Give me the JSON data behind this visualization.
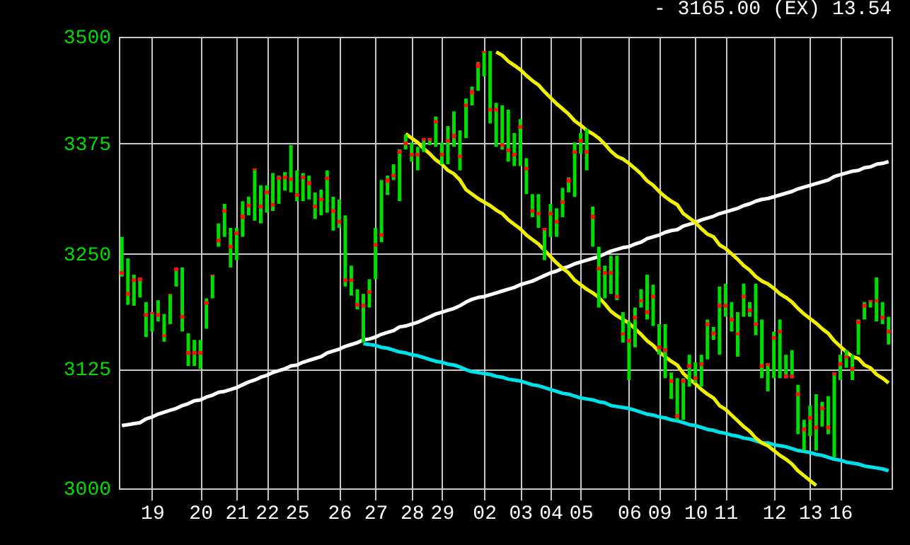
{
  "chart_data": {
    "type": "candlestick",
    "title": "-   3165.00   (EX)   13.54",
    "color": "#00dd00",
    "colors": [
      "#ff1010",
      "#ff1010",
      "#ff1010",
      "#ff1010",
      "#ff1010",
      "#ff1010",
      "#ff1010",
      "#ff1010",
      "#ff1010",
      "#ff1010",
      "#ff1010",
      "#ff1010",
      "#ff1010",
      "#ff1010",
      "#ff1010",
      "#ff1010",
      "#ff1010",
      "#ff1010",
      "#ff1010",
      "#ff1010",
      "#ff1010",
      "#ff1010",
      "#ff1010",
      "#ff1010",
      "#ff1010",
      "#ff1010",
      "#ff1010",
      "#ff1010",
      "#ff1010",
      "#ff1010",
      "#ff1010",
      "#ff1010",
      "#ff1010",
      "#ff1010",
      "#ff1010",
      "#ff1010",
      "#ff1010",
      "#ff1010",
      "#ff1010",
      "#ff1010",
      "#ff1010",
      "#ff1010",
      "#ff1010",
      "#ff1010",
      "#ff1010",
      "#ff1010",
      "#ff1010",
      "#ff1010",
      "#ff1010",
      "#ff1010",
      "#ff1010",
      "#ff1010",
      "#ff1010",
      "#ff1010",
      "#ff1010",
      "#ff1010",
      "#ff1010",
      "#ff1010",
      "#ff1010",
      "#ff1010",
      "#ff1010",
      "#ff1010",
      "#ff1010",
      "#ff1010",
      "#ff1010",
      "#ff1010",
      "#ff1010",
      "#ff1010",
      "#ff1010",
      "#ff1010",
      "#ff1010",
      "#ff1010",
      "#ff1010",
      "#ff1010",
      "#ff1010",
      "#ff1010",
      "#ff1010",
      "#ff1010",
      "#ff1010",
      "#ff1010",
      "#ff1010",
      "#ff1010",
      "#ff1010",
      "#ff1010",
      "#ff1010",
      "#ff1010",
      "#ff1010",
      "#ff1010",
      "#ff1010",
      "#ff1010",
      "#ff1010",
      "#ff1010",
      "#ff1010",
      "#ff1010",
      "#ff1010",
      "#ff1010",
      "#ff1010",
      "#ff1010",
      "#ff1010",
      "#ff1010",
      "#ff1010",
      "#ff1010",
      "#ff1010",
      "#ff1010",
      "#ff1010",
      "#ff1010",
      "#ff1010",
      "#ff1010",
      "#ff1010",
      "#ff1010",
      "#ff1010",
      "#ff1010",
      "#ff1010",
      "#ff1010",
      "#ff1010",
      "#ff1010",
      "#ff1010",
      "#ff1010",
      "#ff1010",
      "#ff1010",
      "#ff1010",
      "#ff1010",
      "#ff1010",
      "#ff1010",
      "#ff1010",
      "#ff1010",
      "#ff1010",
      "#ff1010"
    ],
    "categories": [
      null,
      null,
      null,
      null,
      null,
      "19",
      null,
      null,
      null,
      null,
      null,
      null,
      null,
      "20",
      null,
      null,
      null,
      null,
      null,
      "21",
      null,
      null,
      null,
      null,
      "22",
      null,
      null,
      null,
      null,
      "25",
      null,
      null,
      null,
      null,
      null,
      null,
      "26",
      null,
      null,
      null,
      null,
      null,
      "27",
      null,
      null,
      null,
      null,
      null,
      "28",
      null,
      null,
      null,
      null,
      "29",
      null,
      null,
      null,
      null,
      null,
      null,
      "02",
      null,
      null,
      null,
      null,
      null,
      "03",
      null,
      null,
      null,
      null,
      "04",
      null,
      null,
      null,
      null,
      "05",
      null,
      null,
      null,
      null,
      null,
      null,
      null,
      "06",
      null,
      null,
      null,
      null,
      "09",
      null,
      null,
      null,
      null,
      null,
      "10",
      null,
      null,
      null,
      null,
      "11",
      null,
      null,
      null,
      null,
      null,
      null,
      null,
      "12",
      null,
      null,
      null,
      null,
      null,
      "13",
      null,
      null,
      null,
      null,
      "16",
      null,
      null,
      null,
      null,
      null,
      null,
      null,
      null
    ],
    "ohlc": [
      [
        3231,
        3269,
        3225,
        3227
      ],
      [
        3208,
        3245,
        3194,
        3204
      ],
      [
        3223,
        3227,
        3193,
        3219
      ],
      [
        3224,
        3224,
        3202,
        3220
      ],
      [
        3185,
        3197,
        3159,
        3181
      ],
      [
        3186,
        3186,
        3165,
        3184
      ],
      [
        3185,
        3199,
        3176,
        3181
      ],
      [
        3162,
        3184,
        3154,
        3159
      ],
      [
        3206,
        3206,
        3173,
        3205
      ],
      [
        3235,
        3235,
        3214,
        3231
      ],
      [
        3183,
        3235,
        3165,
        3179
      ],
      [
        3144,
        3163,
        3128,
        3140
      ],
      [
        3144,
        3156,
        3128,
        3140
      ],
      [
        3144,
        3156,
        3125,
        3140
      ],
      [
        3198,
        3201,
        3168,
        3194
      ],
      [
        3227,
        3227,
        3201,
        3226
      ],
      [
        3267,
        3284,
        3258,
        3263
      ],
      [
        3300,
        3306,
        3269,
        3296
      ],
      [
        3260,
        3279,
        3235,
        3256
      ],
      [
        3275,
        3279,
        3243,
        3271
      ],
      [
        3294,
        3309,
        3269,
        3289
      ],
      [
        3306,
        3314,
        3293,
        3302
      ],
      [
        3346,
        3346,
        3287,
        3344
      ],
      [
        3305,
        3327,
        3284,
        3301
      ],
      [
        3321,
        3327,
        3296,
        3317
      ],
      [
        3307,
        3341,
        3298,
        3303
      ],
      [
        3337,
        3338,
        3306,
        3333
      ],
      [
        3338,
        3342,
        3321,
        3334
      ],
      [
        3336,
        3373,
        3319,
        3332
      ],
      [
        3318,
        3344,
        3309,
        3314
      ],
      [
        3338,
        3341,
        3309,
        3334
      ],
      [
        3332,
        3338,
        3311,
        3327
      ],
      [
        3305,
        3319,
        3289,
        3301
      ],
      [
        3313,
        3322,
        3293,
        3309
      ],
      [
        3337,
        3344,
        3296,
        3333
      ],
      [
        3300,
        3314,
        3276,
        3296
      ],
      [
        3288,
        3311,
        3279,
        3284
      ],
      [
        3223,
        3293,
        3214,
        3219
      ],
      [
        3223,
        3237,
        3204,
        3219
      ],
      [
        3196,
        3211,
        3189,
        3192
      ],
      [
        3195,
        3206,
        3153,
        3191
      ],
      [
        3210,
        3222,
        3191,
        3206
      ],
      [
        3262,
        3279,
        3222,
        3258
      ],
      [
        3273,
        3333,
        3263,
        3269
      ],
      [
        3335,
        3338,
        3316,
        3330
      ],
      [
        3340,
        3351,
        3333,
        3336
      ],
      [
        3367,
        3368,
        3309,
        3363
      ],
      [
        3377,
        3385,
        3368,
        3373
      ],
      [
        3364,
        3376,
        3354,
        3360
      ],
      [
        3364,
        3371,
        3344,
        3360
      ],
      [
        3381,
        3381,
        3365,
        3378
      ],
      [
        3381,
        3381,
        3373,
        3378
      ],
      [
        3402,
        3406,
        3371,
        3398
      ],
      [
        3364,
        3376,
        3351,
        3360
      ],
      [
        3380,
        3395,
        3351,
        3376
      ],
      [
        3386,
        3412,
        3371,
        3381
      ],
      [
        3362,
        3390,
        3344,
        3358
      ],
      [
        3421,
        3427,
        3381,
        3417
      ],
      [
        3437,
        3441,
        3419,
        3432
      ],
      [
        3469,
        3470,
        3436,
        3463
      ],
      [
        3483,
        3483,
        3453,
        3481
      ],
      [
        3416,
        3483,
        3398,
        3412
      ],
      [
        3416,
        3422,
        3371,
        3412
      ],
      [
        3375,
        3419,
        3368,
        3371
      ],
      [
        3369,
        3414,
        3354,
        3365
      ],
      [
        3364,
        3387,
        3349,
        3360
      ],
      [
        3396,
        3403,
        3349,
        3392
      ],
      [
        3348,
        3358,
        3317,
        3344
      ],
      [
        3300,
        3317,
        3291,
        3296
      ],
      [
        3297,
        3317,
        3279,
        3293
      ],
      [
        3279,
        3279,
        3243,
        3276
      ],
      [
        3297,
        3306,
        3269,
        3293
      ],
      [
        3288,
        3301,
        3269,
        3284
      ],
      [
        3310,
        3324,
        3291,
        3306
      ],
      [
        3335,
        3336,
        3319,
        3330
      ],
      [
        3367,
        3376,
        3314,
        3363
      ],
      [
        3380,
        3387,
        3363,
        3376
      ],
      [
        3367,
        3392,
        3344,
        3363
      ],
      [
        3294,
        3303,
        3258,
        3289
      ],
      [
        3236,
        3258,
        3191,
        3232
      ],
      [
        3231,
        3237,
        3201,
        3227
      ],
      [
        3231,
        3248,
        3206,
        3227
      ],
      [
        3205,
        3248,
        3199,
        3201
      ],
      [
        3164,
        3186,
        3153,
        3161
      ],
      [
        3157,
        3176,
        3113,
        3153
      ],
      [
        3182,
        3191,
        3148,
        3178
      ],
      [
        3200,
        3211,
        3191,
        3197
      ],
      [
        3188,
        3227,
        3178,
        3184
      ],
      [
        3205,
        3216,
        3171,
        3201
      ],
      [
        3150,
        3173,
        3140,
        3146
      ],
      [
        3147,
        3173,
        3115,
        3143
      ],
      [
        3114,
        3121,
        3093,
        3110
      ],
      [
        3077,
        3115,
        3071,
        3073
      ],
      [
        3114,
        3115,
        3071,
        3110
      ],
      [
        3130,
        3140,
        3106,
        3126
      ],
      [
        3117,
        3132,
        3110,
        3113
      ],
      [
        3132,
        3140,
        3106,
        3128
      ],
      [
        3175,
        3178,
        3135,
        3171
      ],
      [
        3165,
        3170,
        3156,
        3161
      ],
      [
        3195,
        3214,
        3140,
        3191
      ],
      [
        3195,
        3217,
        3181,
        3191
      ],
      [
        3180,
        3197,
        3165,
        3176
      ],
      [
        3164,
        3186,
        3138,
        3161
      ],
      [
        3205,
        3217,
        3181,
        3201
      ],
      [
        3190,
        3197,
        3181,
        3186
      ],
      [
        3175,
        3217,
        3161,
        3171
      ],
      [
        3130,
        3178,
        3115,
        3126
      ],
      [
        3131,
        3131,
        3101,
        3128
      ],
      [
        3160,
        3165,
        3115,
        3156
      ],
      [
        3167,
        3178,
        3115,
        3163
      ],
      [
        3119,
        3140,
        3115,
        3115
      ],
      [
        3119,
        3145,
        3115,
        3115
      ],
      [
        3100,
        3108,
        3056,
        3096
      ],
      [
        3063,
        3071,
        3039,
        3059
      ],
      [
        3075,
        3086,
        3054,
        3071
      ],
      [
        3065,
        3098,
        3039,
        3061
      ],
      [
        3085,
        3090,
        3064,
        3081
      ],
      [
        3065,
        3096,
        3056,
        3061
      ],
      [
        3121,
        3121,
        3032,
        3118
      ],
      [
        3132,
        3140,
        3113,
        3128
      ],
      [
        3139,
        3145,
        3126,
        3136
      ],
      [
        3127,
        3140,
        3113,
        3123
      ],
      [
        3177,
        3178,
        3140,
        3173
      ],
      [
        3195,
        3197,
        3178,
        3191
      ],
      [
        3199,
        3199,
        3191,
        3197
      ],
      [
        3200,
        3224,
        3176,
        3197
      ],
      [
        3182,
        3197,
        3173,
        3178
      ],
      [
        3167,
        3181,
        3151,
        3163
      ]
    ],
    "series": [
      {
        "type": "line",
        "color": "#ffffff",
        "values": [
          3065,
          3066,
          3067,
          3068,
          3072,
          3074,
          3077,
          3079,
          3081,
          3083,
          3086,
          3088,
          3091,
          3092,
          3095,
          3097,
          3100,
          3101,
          3103,
          3105,
          3108,
          3111,
          3113,
          3116,
          3118,
          3121,
          3123,
          3125,
          3128,
          3129,
          3132,
          3134,
          3136,
          3138,
          3142,
          3144,
          3146,
          3149,
          3151,
          3153,
          3156,
          3157,
          3159,
          3162,
          3164,
          3166,
          3170,
          3171,
          3173,
          3175,
          3178,
          3181,
          3184,
          3186,
          3188,
          3190,
          3193,
          3197,
          3200,
          3202,
          3203,
          3205,
          3207,
          3209,
          3211,
          3213,
          3216,
          3218,
          3220,
          3223,
          3226,
          3229,
          3231,
          3234,
          3236,
          3239,
          3241,
          3243,
          3245,
          3247,
          3250,
          3253,
          3255,
          3257,
          3258,
          3261,
          3263,
          3267,
          3269,
          3271,
          3274,
          3276,
          3277,
          3281,
          3283,
          3285,
          3288,
          3290,
          3292,
          3295,
          3297,
          3299,
          3301,
          3304,
          3306,
          3309,
          3311,
          3312,
          3314,
          3316,
          3318,
          3320,
          3323,
          3325,
          3327,
          3329,
          3331,
          3333,
          3337,
          3339,
          3341,
          3343,
          3344,
          3347,
          3348,
          3351,
          3352,
          3354
        ]
      },
      {
        "type": "line",
        "color": "#00e0e8",
        "values": [
          null,
          null,
          null,
          null,
          null,
          null,
          null,
          null,
          null,
          null,
          null,
          null,
          null,
          null,
          null,
          null,
          null,
          null,
          null,
          null,
          null,
          null,
          null,
          null,
          null,
          null,
          null,
          null,
          null,
          null,
          null,
          null,
          null,
          null,
          null,
          null,
          null,
          null,
          null,
          null,
          3152,
          3151,
          3150,
          3148,
          3147,
          3145,
          3143,
          3142,
          3140,
          3139,
          3137,
          3135,
          3133,
          3132,
          3130,
          3129,
          3127,
          3124,
          3122,
          3121,
          3120,
          3119,
          3117,
          3116,
          3114,
          3113,
          3112,
          3110,
          3108,
          3107,
          3105,
          3103,
          3101,
          3099,
          3098,
          3096,
          3094,
          3093,
          3092,
          3090,
          3089,
          3086,
          3085,
          3084,
          3083,
          3081,
          3079,
          3077,
          3076,
          3074,
          3073,
          3071,
          3070,
          3068,
          3066,
          3065,
          3063,
          3061,
          3060,
          3058,
          3057,
          3055,
          3054,
          3052,
          3051,
          3049,
          3047,
          3047,
          3045,
          3044,
          3043,
          3041,
          3039,
          3038,
          3037,
          3035,
          3034,
          3032,
          3030,
          3029,
          3027,
          3026,
          3025,
          3023,
          3022,
          3021,
          3020,
          3018
        ]
      },
      {
        "type": "line",
        "color": "#f0f000",
        "values": [
          null,
          null,
          null,
          null,
          null,
          null,
          null,
          null,
          null,
          null,
          null,
          null,
          null,
          null,
          null,
          null,
          null,
          null,
          null,
          null,
          null,
          null,
          null,
          null,
          null,
          null,
          null,
          null,
          null,
          null,
          null,
          null,
          null,
          null,
          null,
          null,
          null,
          null,
          null,
          null,
          null,
          null,
          null,
          null,
          null,
          null,
          null,
          null,
          null,
          null,
          null,
          null,
          null,
          null,
          null,
          null,
          null,
          null,
          null,
          null,
          null,
          null,
          3482,
          3478,
          3471,
          3466,
          3461,
          3454,
          3448,
          3443,
          3435,
          3428,
          3421,
          3415,
          3409,
          3401,
          3396,
          3390,
          3386,
          3381,
          3374,
          3366,
          3360,
          3357,
          3352,
          3346,
          3340,
          3332,
          3327,
          3320,
          3314,
          3309,
          3305,
          3295,
          3290,
          3285,
          3278,
          3272,
          3269,
          3260,
          3256,
          3250,
          3244,
          3237,
          3232,
          3225,
          3220,
          3217,
          3212,
          3206,
          3202,
          3197,
          3190,
          3184,
          3179,
          3174,
          3168,
          3163,
          3155,
          3149,
          3143,
          3138,
          3136,
          3129,
          3126,
          3119,
          3115,
          3110
        ]
      },
      {
        "type": "line",
        "color": "#f0f000",
        "values": [
          null,
          null,
          null,
          null,
          null,
          null,
          null,
          null,
          null,
          null,
          null,
          null,
          null,
          null,
          null,
          null,
          null,
          null,
          null,
          null,
          null,
          null,
          null,
          null,
          null,
          null,
          null,
          null,
          null,
          null,
          null,
          null,
          null,
          null,
          null,
          null,
          null,
          null,
          null,
          null,
          null,
          null,
          null,
          null,
          null,
          null,
          null,
          3386,
          3381,
          3376,
          3369,
          3363,
          3356,
          3351,
          3344,
          3340,
          3333,
          3322,
          3317,
          3312,
          3308,
          3304,
          3299,
          3295,
          3288,
          3283,
          3278,
          3271,
          3266,
          3261,
          3254,
          3247,
          3240,
          3234,
          3229,
          3221,
          3216,
          3211,
          3207,
          3202,
          3195,
          3187,
          3182,
          3178,
          3174,
          3168,
          3162,
          3155,
          3150,
          3143,
          3138,
          3133,
          3129,
          3120,
          3114,
          3109,
          3103,
          3098,
          3094,
          3086,
          3082,
          3076,
          3070,
          3064,
          3059,
          3052,
          3047,
          3044,
          3039,
          3034,
          3030,
          3025,
          3018,
          3013,
          3008,
          3003,
          null,
          null,
          null,
          null,
          null,
          null,
          null,
          null,
          null,
          null,
          null,
          null
        ]
      }
    ],
    "ylim": [
      3000,
      3500
    ],
    "yticks": [
      3000,
      3125,
      3250,
      3375,
      3500
    ],
    "log": true,
    "grid": true
  }
}
